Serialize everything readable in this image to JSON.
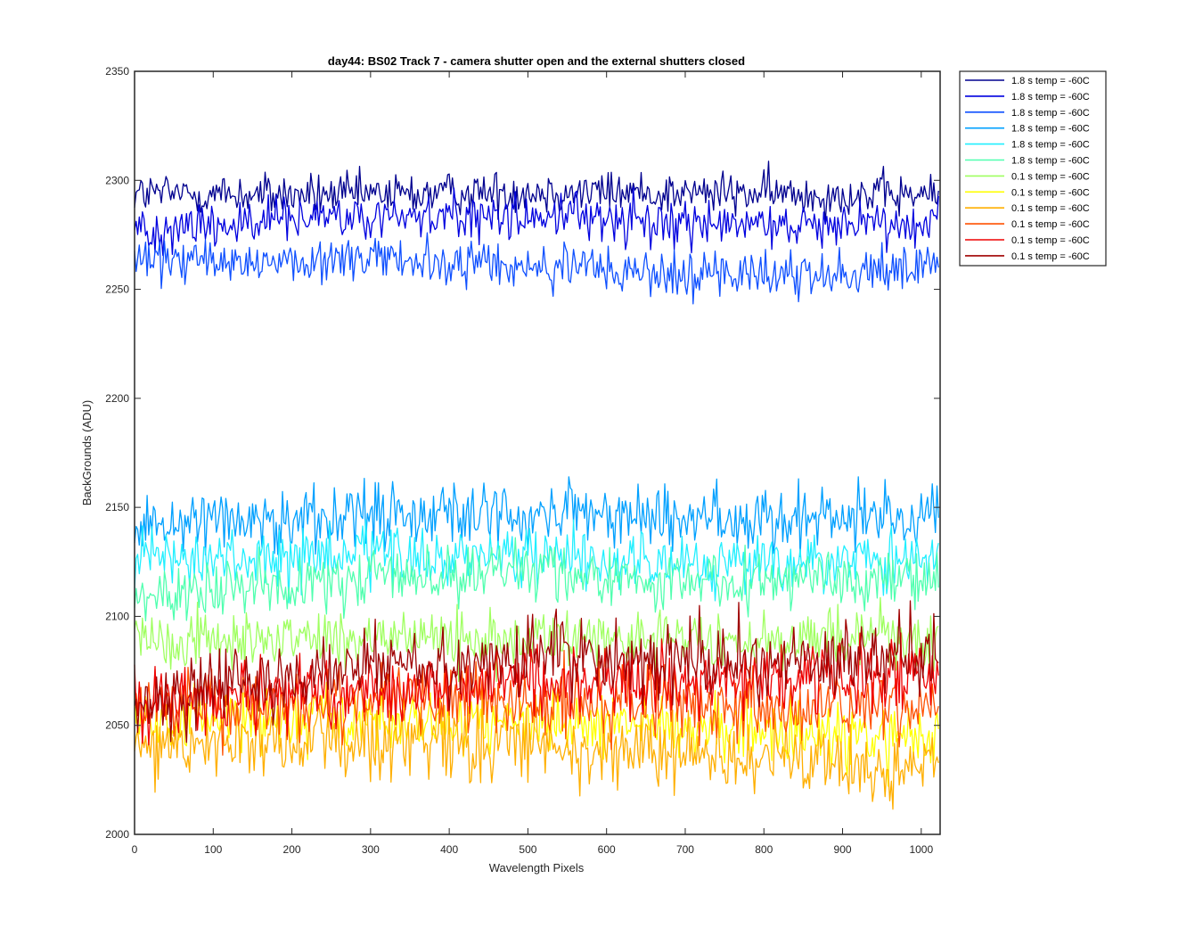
{
  "chart_data": {
    "type": "line",
    "title": "day44: BS02  Track 7 - camera shutter open and the external shutters closed",
    "xlabel": "Wavelength Pixels",
    "ylabel": "BackGrounds (ADU)",
    "xlim": [
      0,
      1024
    ],
    "ylim": [
      2000,
      2350
    ],
    "xticks": [
      0,
      100,
      200,
      300,
      400,
      500,
      600,
      700,
      800,
      900,
      1000
    ],
    "yticks": [
      2000,
      2050,
      2100,
      2150,
      2200,
      2250,
      2300,
      2350
    ],
    "grid": false,
    "legend_position": "outside-top-right",
    "series_summary": "12 noisy traces over pixels 0-1024; values are approximate (mean, noise amplitude, mean drift)",
    "series": [
      {
        "name": "1.8 s temp = -60C",
        "color": "#00008f",
        "mean": 2294,
        "noise": 7,
        "drift": [
          0,
          -1,
          1,
          0,
          -1
        ]
      },
      {
        "name": "1.8 s temp = -60C",
        "color": "#0000df",
        "mean": 2282,
        "noise": 8,
        "drift": [
          -4,
          0,
          2,
          -3,
          0
        ]
      },
      {
        "name": "1.8 s temp = -60C",
        "color": "#0f50ff",
        "mean": 2262,
        "noise": 8,
        "drift": [
          0,
          2,
          -2,
          -6,
          -2
        ]
      },
      {
        "name": "1.8 s temp = -60C",
        "color": "#00a0ff",
        "mean": 2145,
        "noise": 11,
        "drift": [
          -2,
          2,
          2,
          0,
          2
        ]
      },
      {
        "name": "1.8 s temp = -60C",
        "color": "#20efff",
        "mean": 2125,
        "noise": 10,
        "drift": [
          0,
          2,
          2,
          -2,
          0
        ]
      },
      {
        "name": "1.8 s temp = -60C",
        "color": "#50ffaf",
        "mean": 2118,
        "noise": 10,
        "drift": [
          -10,
          0,
          2,
          -2,
          0
        ]
      },
      {
        "name": "0.1 s temp = -60C",
        "color": "#9fff60",
        "mean": 2090,
        "noise": 10,
        "drift": [
          0,
          0,
          0,
          0,
          0
        ]
      },
      {
        "name": "0.1 s temp = -60C",
        "color": "#ffff00",
        "mean": 2052,
        "noise": 11,
        "drift": [
          0,
          0,
          0,
          -4,
          -8
        ]
      },
      {
        "name": "0.1 s temp = -60C",
        "color": "#ffaf00",
        "mean": 2042,
        "noise": 12,
        "drift": [
          0,
          0,
          0,
          -8,
          -12
        ]
      },
      {
        "name": "0.1 s temp = -60C",
        "color": "#ff5000",
        "mean": 2058,
        "noise": 12,
        "drift": [
          0,
          2,
          4,
          0,
          0
        ]
      },
      {
        "name": "0.1 s temp = -60C",
        "color": "#ef0000",
        "mean": 2062,
        "noise": 12,
        "drift": [
          0,
          4,
          6,
          10,
          12
        ]
      },
      {
        "name": "0.1 s temp = -60C",
        "color": "#9f0000",
        "mean": 2070,
        "noise": 13,
        "drift": [
          -8,
          6,
          12,
          10,
          12
        ]
      }
    ]
  }
}
